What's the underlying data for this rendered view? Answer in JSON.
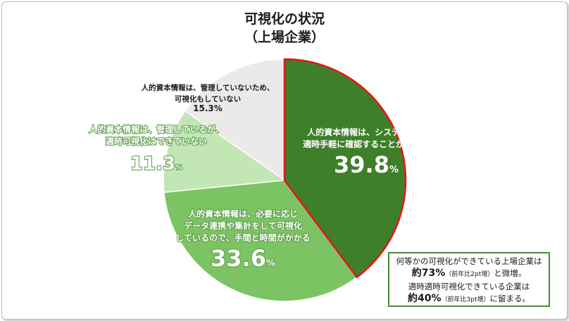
{
  "chart_data": {
    "type": "pie",
    "title": "可視化の状況",
    "subtitle": "（上場企業）",
    "slices": [
      {
        "label_lines": [
          "人的資本情報は、システムから",
          "適時手軽に確認することができる"
        ],
        "value": 39.8,
        "value_text": "39.8",
        "unit": "%",
        "color": "#3f7f2a"
      },
      {
        "label_lines": [
          "人的資本情報は、必要に応じ",
          "データ連携や集計をして可視化",
          "しているので、手間と時間がかかる"
        ],
        "value": 33.6,
        "value_text": "33.6",
        "unit": "%",
        "color": "#7cc463"
      },
      {
        "label_lines": [
          "人的資本情報は、管理しているが、",
          "適時可視化はできていない"
        ],
        "value": 11.3,
        "value_text": "11.3",
        "unit": "%",
        "color": "#c2e6b4"
      },
      {
        "label_lines": [
          "人的資本情報は、管理していないため、",
          "可視化もしていない"
        ],
        "value": 15.3,
        "value_text": "15.3%",
        "unit": "",
        "color": "#ebe9ea"
      }
    ],
    "highlight_color": "#e8141c"
  },
  "note": {
    "line1": "何等かの可視化ができている上場企業は",
    "line2_big": "約73%",
    "line2_small": "（前年比2pt増）",
    "line2_rest": "と微増。",
    "line3": "適時適時可視化できている企業は",
    "line4_big": "約40%",
    "line4_small": "（前年比3pt増）",
    "line4_rest": "に留まる。"
  }
}
